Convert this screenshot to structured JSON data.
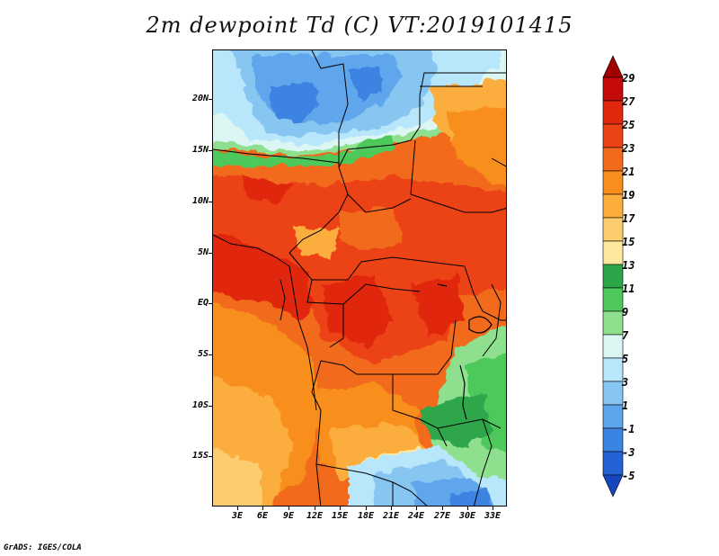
{
  "title": "2m dewpoint Td (C) VT:2019101415",
  "map": {
    "lat_labels": [
      "20N",
      "15N",
      "10N",
      "5N",
      "EQ",
      "5S",
      "10S",
      "15S"
    ],
    "lon_labels": [
      "3E",
      "6E",
      "9E",
      "12E",
      "15E",
      "18E",
      "21E",
      "24E",
      "27E",
      "30E",
      "33E"
    ]
  },
  "colorbar": {
    "labels": [
      "29",
      "27",
      "25",
      "23",
      "21",
      "19",
      "17",
      "15",
      "13",
      "11",
      "9",
      "7",
      "5",
      "3",
      "1",
      "-1",
      "-3",
      "-5"
    ],
    "colors": [
      "#a00000",
      "#c40a0a",
      "#e0280e",
      "#eb4316",
      "#f26a1c",
      "#f88e1e",
      "#fbae3c",
      "#fbcd6e",
      "#fde89e",
      "#2da64a",
      "#4ec85a",
      "#8ee08e",
      "#dcf6f4",
      "#b8e6fa",
      "#88c6f2",
      "#5ea6ec",
      "#3c84e2",
      "#2262d4",
      "#1446c0"
    ]
  },
  "credit": "GrADS: IGES/COLA"
}
